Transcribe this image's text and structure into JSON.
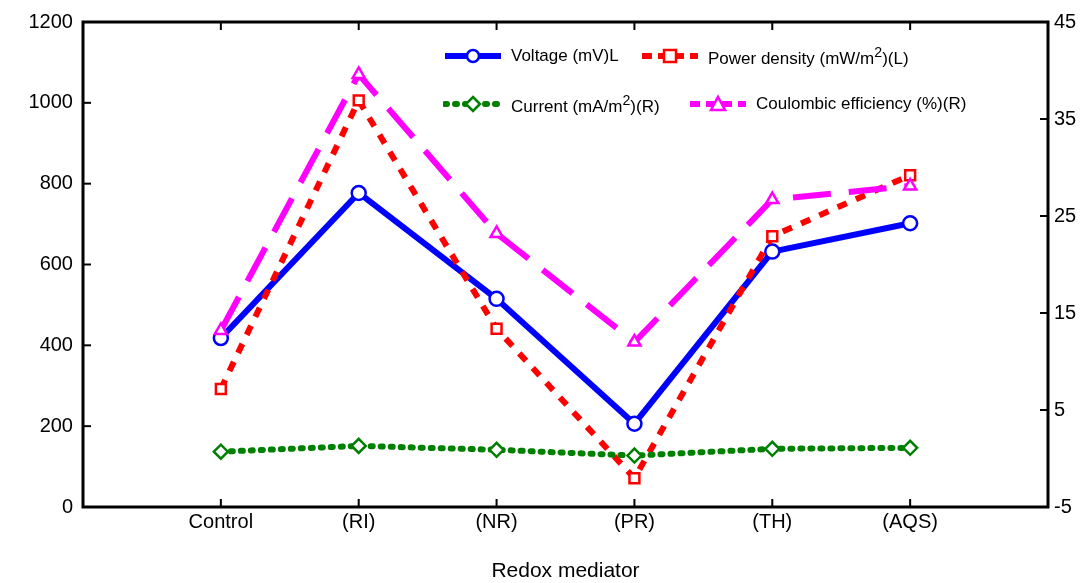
{
  "chart_data": {
    "type": "line",
    "xlabel": "Redox mediator",
    "categories": [
      "Control",
      "(RI)",
      "(NR)",
      "(PR)",
      "(TH)",
      "(AQS)"
    ],
    "series": [
      {
        "name": "Voltage (mV)L",
        "color": "#0000ff",
        "marker": "circle",
        "line_style": "solid",
        "values": [
          418,
          777,
          515,
          206,
          632,
          702
        ]
      },
      {
        "name": "Power density (mW/m$^{2}$)(L)",
        "color": "#ff0000",
        "marker": "square",
        "line_style": "dashed",
        "values": [
          292,
          1006,
          441,
          71,
          670,
          821
        ]
      },
      {
        "name": "Current (mA/m$^{2}$)(R)",
        "color": "#008000",
        "marker": "diamond",
        "line_style": "dotted",
        "axis": "y2",
        "values": [
          0.7,
          1.3,
          0.9,
          0.3,
          1.0,
          1.1
        ]
      },
      {
        "name": "Coulombic efficiency (%)(R)",
        "color": "#ff00ff",
        "marker": "triangle",
        "line_style": "dashed",
        "axis": "y2",
        "values": [
          13.2,
          39.6,
          23.2,
          12.0,
          26.7,
          28.1
        ]
      }
    ],
    "ylim": [
      0,
      1200
    ],
    "yticks": [
      0,
      200,
      400,
      600,
      800,
      1000,
      1200
    ],
    "y2lim": [
      -5,
      45
    ],
    "y2ticks": [
      -5,
      5,
      15,
      25,
      35,
      45
    ],
    "grid": false,
    "legend": "top right"
  }
}
